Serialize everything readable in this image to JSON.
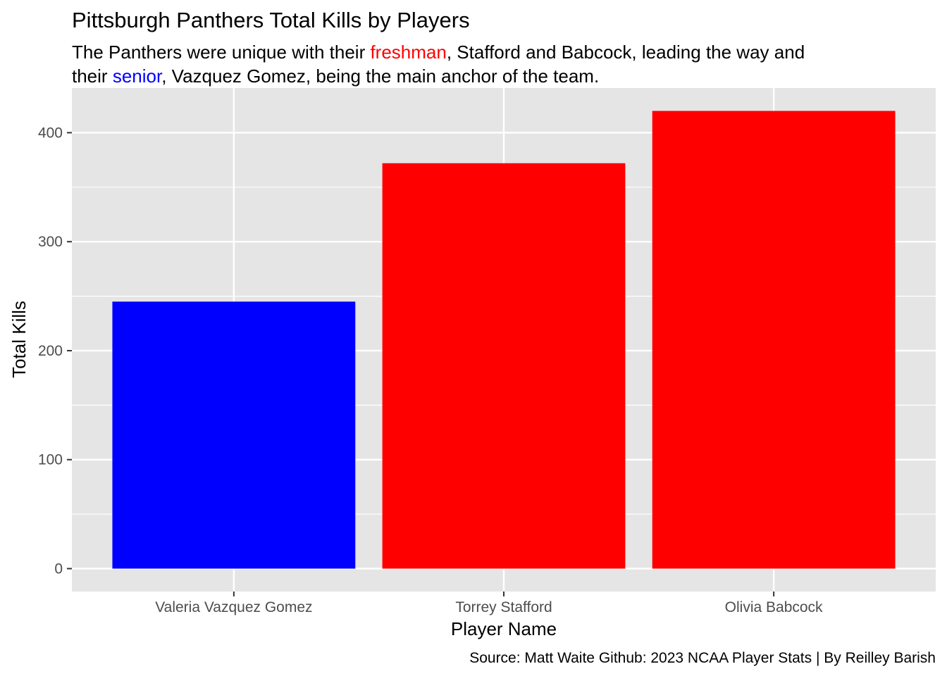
{
  "chart_data": {
    "type": "bar",
    "title": "Pittsburgh Panthers Total Kills by Players",
    "subtitle": {
      "line1": [
        {
          "text": "The Panthers were unique with their ",
          "color": "#000000"
        },
        {
          "text": "freshman",
          "color": "#ff0000"
        },
        {
          "text": ", Stafford and Babcock, leading the way and",
          "color": "#000000"
        }
      ],
      "line2": [
        {
          "text": "their ",
          "color": "#000000"
        },
        {
          "text": "senior",
          "color": "#0000ff"
        },
        {
          "text": ", Vazquez Gomez, being the main anchor of the team.",
          "color": "#000000"
        }
      ]
    },
    "xlabel": "Player Name",
    "ylabel": "Total Kills",
    "caption": "Source: Matt Waite Github: 2023 NCAA Player Stats | By Reilley Barish",
    "categories": [
      "Valeria Vazquez Gomez",
      "Torrey Stafford",
      "Olivia Babcock"
    ],
    "values": [
      245,
      372,
      420
    ],
    "bar_colors": [
      "#0000ff",
      "#ff0000",
      "#ff0000"
    ],
    "yticks": [
      0,
      100,
      200,
      300,
      400
    ],
    "ylim": [
      -21,
      441
    ],
    "grid": true,
    "panel_background": "#e5e5e5",
    "gridline_color": "#ffffff"
  }
}
